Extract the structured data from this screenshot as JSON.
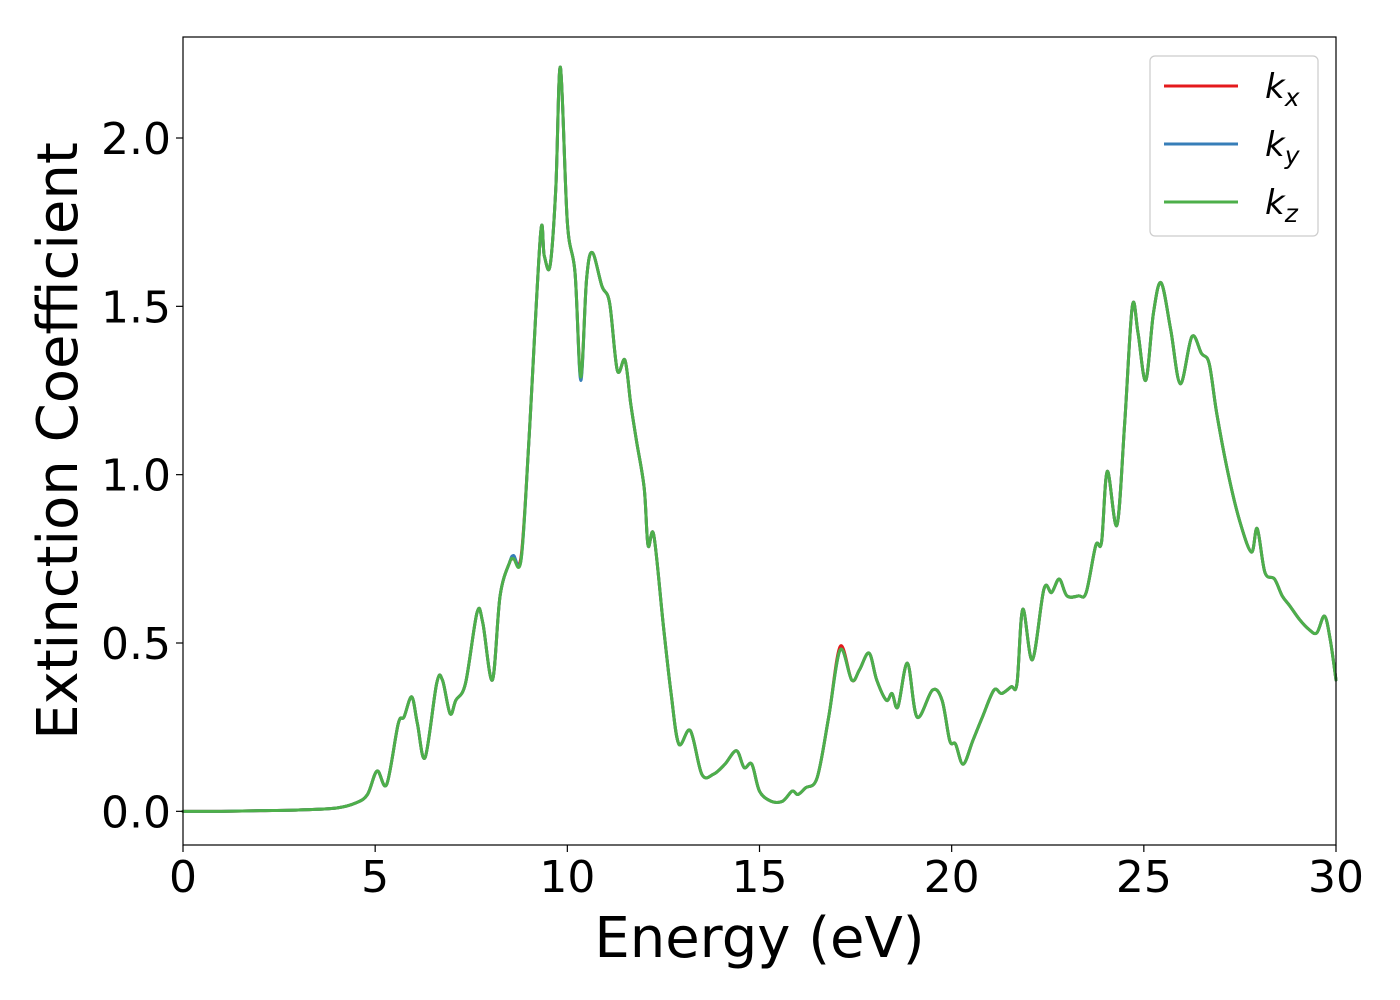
{
  "chart_data": {
    "type": "line",
    "title": "",
    "xlabel": "Energy (eV)",
    "ylabel": "Extinction Coefficient",
    "xlim": [
      0,
      30
    ],
    "ylim": [
      -0.1,
      2.3
    ],
    "xticks": [
      0,
      5,
      10,
      15,
      20,
      25,
      30
    ],
    "xtick_labels": [
      "0",
      "5",
      "10",
      "15",
      "20",
      "25",
      "30"
    ],
    "yticks": [
      0.0,
      0.5,
      1.0,
      1.5,
      2.0
    ],
    "ytick_labels": [
      "0.0",
      "0.5",
      "1.0",
      "1.5",
      "2.0"
    ],
    "grid": false,
    "legend_position": "top-right",
    "x": [
      0,
      1,
      2,
      3,
      4,
      4.5,
      4.8,
      5.05,
      5.3,
      5.6,
      5.75,
      5.95,
      6.1,
      6.3,
      6.6,
      6.75,
      6.95,
      7.1,
      7.35,
      7.65,
      7.8,
      8.05,
      8.25,
      8.5,
      8.6,
      8.8,
      9.0,
      9.3,
      9.4,
      9.55,
      9.7,
      9.82,
      10.0,
      10.2,
      10.35,
      10.5,
      10.65,
      10.9,
      11.1,
      11.3,
      11.5,
      11.65,
      11.8,
      12.0,
      12.1,
      12.25,
      12.5,
      12.7,
      12.9,
      13.2,
      13.5,
      13.8,
      14.1,
      14.4,
      14.6,
      14.8,
      15.0,
      15.3,
      15.6,
      15.85,
      16.0,
      16.2,
      16.5,
      16.8,
      17.1,
      17.4,
      17.6,
      17.85,
      18.05,
      18.3,
      18.45,
      18.6,
      18.85,
      19.1,
      19.5,
      19.75,
      19.95,
      20.1,
      20.3,
      20.55,
      20.8,
      21.1,
      21.3,
      21.55,
      21.7,
      21.85,
      22.1,
      22.4,
      22.6,
      22.8,
      23.0,
      23.3,
      23.5,
      23.75,
      23.9,
      24.05,
      24.3,
      24.5,
      24.7,
      24.85,
      25.05,
      25.25,
      25.45,
      25.7,
      25.95,
      26.25,
      26.5,
      26.7,
      26.9,
      27.2,
      27.5,
      27.8,
      27.95,
      28.15,
      28.4,
      28.6,
      28.8,
      29.05,
      29.3,
      29.5,
      29.7,
      29.85,
      30.0
    ],
    "series": [
      {
        "name": "k_x",
        "color": "#e41a1c",
        "values": [
          0.0,
          0.0,
          0.002,
          0.004,
          0.01,
          0.025,
          0.05,
          0.12,
          0.08,
          0.26,
          0.28,
          0.34,
          0.26,
          0.16,
          0.38,
          0.39,
          0.29,
          0.33,
          0.38,
          0.59,
          0.56,
          0.39,
          0.64,
          0.74,
          0.75,
          0.76,
          1.1,
          1.71,
          1.65,
          1.62,
          1.85,
          2.21,
          1.75,
          1.6,
          1.29,
          1.58,
          1.66,
          1.56,
          1.51,
          1.31,
          1.34,
          1.21,
          1.1,
          0.96,
          0.79,
          0.82,
          0.55,
          0.35,
          0.2,
          0.24,
          0.11,
          0.11,
          0.14,
          0.18,
          0.13,
          0.14,
          0.06,
          0.03,
          0.03,
          0.06,
          0.05,
          0.07,
          0.1,
          0.28,
          0.49,
          0.39,
          0.42,
          0.47,
          0.39,
          0.33,
          0.35,
          0.31,
          0.44,
          0.28,
          0.36,
          0.33,
          0.21,
          0.2,
          0.14,
          0.21,
          0.28,
          0.36,
          0.35,
          0.37,
          0.38,
          0.6,
          0.45,
          0.66,
          0.65,
          0.69,
          0.64,
          0.64,
          0.65,
          0.79,
          0.8,
          1.01,
          0.85,
          1.15,
          1.5,
          1.42,
          1.28,
          1.48,
          1.57,
          1.43,
          1.27,
          1.41,
          1.36,
          1.33,
          1.18,
          1.0,
          0.86,
          0.77,
          0.84,
          0.71,
          0.69,
          0.64,
          0.61,
          0.57,
          0.54,
          0.53,
          0.58,
          0.51,
          0.39
        ]
      },
      {
        "name": "k_y",
        "color": "#377eb8",
        "values": [
          0.0,
          0.0,
          0.002,
          0.004,
          0.01,
          0.025,
          0.05,
          0.12,
          0.08,
          0.26,
          0.28,
          0.34,
          0.26,
          0.16,
          0.38,
          0.39,
          0.29,
          0.33,
          0.38,
          0.59,
          0.56,
          0.39,
          0.64,
          0.74,
          0.76,
          0.75,
          1.1,
          1.71,
          1.65,
          1.62,
          1.85,
          2.21,
          1.75,
          1.6,
          1.28,
          1.58,
          1.66,
          1.56,
          1.51,
          1.31,
          1.34,
          1.21,
          1.1,
          0.96,
          0.79,
          0.82,
          0.55,
          0.35,
          0.2,
          0.24,
          0.11,
          0.11,
          0.14,
          0.18,
          0.13,
          0.14,
          0.06,
          0.03,
          0.03,
          0.06,
          0.05,
          0.07,
          0.1,
          0.28,
          0.48,
          0.39,
          0.42,
          0.47,
          0.39,
          0.33,
          0.35,
          0.31,
          0.44,
          0.28,
          0.36,
          0.33,
          0.21,
          0.2,
          0.14,
          0.21,
          0.28,
          0.36,
          0.35,
          0.37,
          0.38,
          0.6,
          0.45,
          0.66,
          0.65,
          0.69,
          0.64,
          0.64,
          0.65,
          0.79,
          0.8,
          1.01,
          0.85,
          1.15,
          1.5,
          1.42,
          1.28,
          1.48,
          1.57,
          1.43,
          1.27,
          1.41,
          1.36,
          1.33,
          1.18,
          1.0,
          0.86,
          0.77,
          0.84,
          0.71,
          0.69,
          0.64,
          0.61,
          0.57,
          0.54,
          0.53,
          0.58,
          0.51,
          0.39
        ]
      },
      {
        "name": "k_z",
        "color": "#4daf4a",
        "values": [
          0.0,
          0.0,
          0.002,
          0.004,
          0.01,
          0.025,
          0.05,
          0.12,
          0.08,
          0.26,
          0.28,
          0.34,
          0.26,
          0.16,
          0.38,
          0.39,
          0.29,
          0.33,
          0.38,
          0.59,
          0.56,
          0.39,
          0.64,
          0.74,
          0.75,
          0.75,
          1.1,
          1.71,
          1.65,
          1.62,
          1.85,
          2.21,
          1.75,
          1.6,
          1.29,
          1.58,
          1.66,
          1.56,
          1.51,
          1.31,
          1.34,
          1.21,
          1.1,
          0.96,
          0.79,
          0.82,
          0.55,
          0.35,
          0.2,
          0.24,
          0.11,
          0.11,
          0.14,
          0.18,
          0.13,
          0.14,
          0.06,
          0.03,
          0.03,
          0.06,
          0.05,
          0.07,
          0.1,
          0.28,
          0.48,
          0.39,
          0.42,
          0.47,
          0.39,
          0.33,
          0.35,
          0.31,
          0.44,
          0.28,
          0.36,
          0.33,
          0.21,
          0.2,
          0.14,
          0.21,
          0.28,
          0.36,
          0.35,
          0.37,
          0.38,
          0.6,
          0.45,
          0.66,
          0.65,
          0.69,
          0.64,
          0.64,
          0.65,
          0.79,
          0.8,
          1.01,
          0.85,
          1.15,
          1.5,
          1.42,
          1.28,
          1.48,
          1.57,
          1.43,
          1.27,
          1.41,
          1.36,
          1.33,
          1.18,
          1.0,
          0.86,
          0.77,
          0.84,
          0.71,
          0.69,
          0.64,
          0.61,
          0.57,
          0.54,
          0.53,
          0.58,
          0.51,
          0.39
        ]
      }
    ],
    "legend": [
      {
        "base": "k",
        "sub": "x",
        "color": "#e41a1c"
      },
      {
        "base": "k",
        "sub": "y",
        "color": "#377eb8"
      },
      {
        "base": "k",
        "sub": "z",
        "color": "#4daf4a"
      }
    ]
  }
}
